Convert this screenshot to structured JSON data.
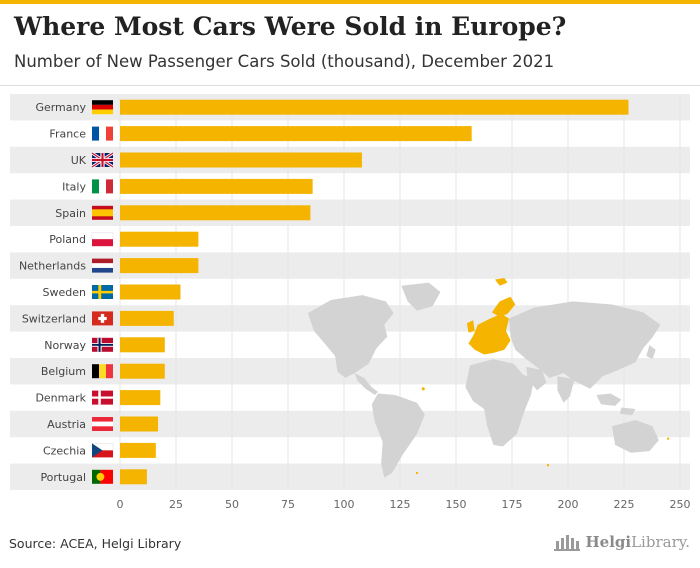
{
  "header": {
    "title": "Where Most Cars Were Sold in Europe?",
    "subtitle": "Number of New Passenger Cars Sold (thousand), December 2021"
  },
  "footer": {
    "source": "Source: ACEA, Helgi Library",
    "logo_main": "Helgi",
    "logo_rest": "Library."
  },
  "colors": {
    "bar": "#f5b400",
    "row_band": "#ececec",
    "map_land": "#d3d3d3",
    "map_highlight": "#f5b400",
    "grid": "#e6e6e6"
  },
  "chart_data": {
    "type": "bar",
    "orientation": "horizontal",
    "categories": [
      "Germany",
      "France",
      "UK",
      "Italy",
      "Spain",
      "Poland",
      "Netherlands",
      "Sweden",
      "Switzerland",
      "Norway",
      "Belgium",
      "Denmark",
      "Austria",
      "Czechia",
      "Portugal"
    ],
    "values": [
      227,
      157,
      108,
      86,
      85,
      35,
      35,
      27,
      24,
      20,
      20,
      18,
      17,
      16,
      12
    ],
    "flags": [
      "de",
      "fr",
      "uk",
      "it",
      "es",
      "pl",
      "nl",
      "se",
      "ch",
      "no",
      "be",
      "dk",
      "at",
      "cz",
      "pt"
    ],
    "xlim": [
      0,
      250
    ],
    "xticks": [
      0,
      25,
      50,
      75,
      100,
      125,
      150,
      175,
      200,
      225,
      250
    ],
    "grid": true,
    "title": "Where Most Cars Were Sold in Europe?",
    "subtitle": "Number of New Passenger Cars Sold (thousand), December 2021"
  }
}
